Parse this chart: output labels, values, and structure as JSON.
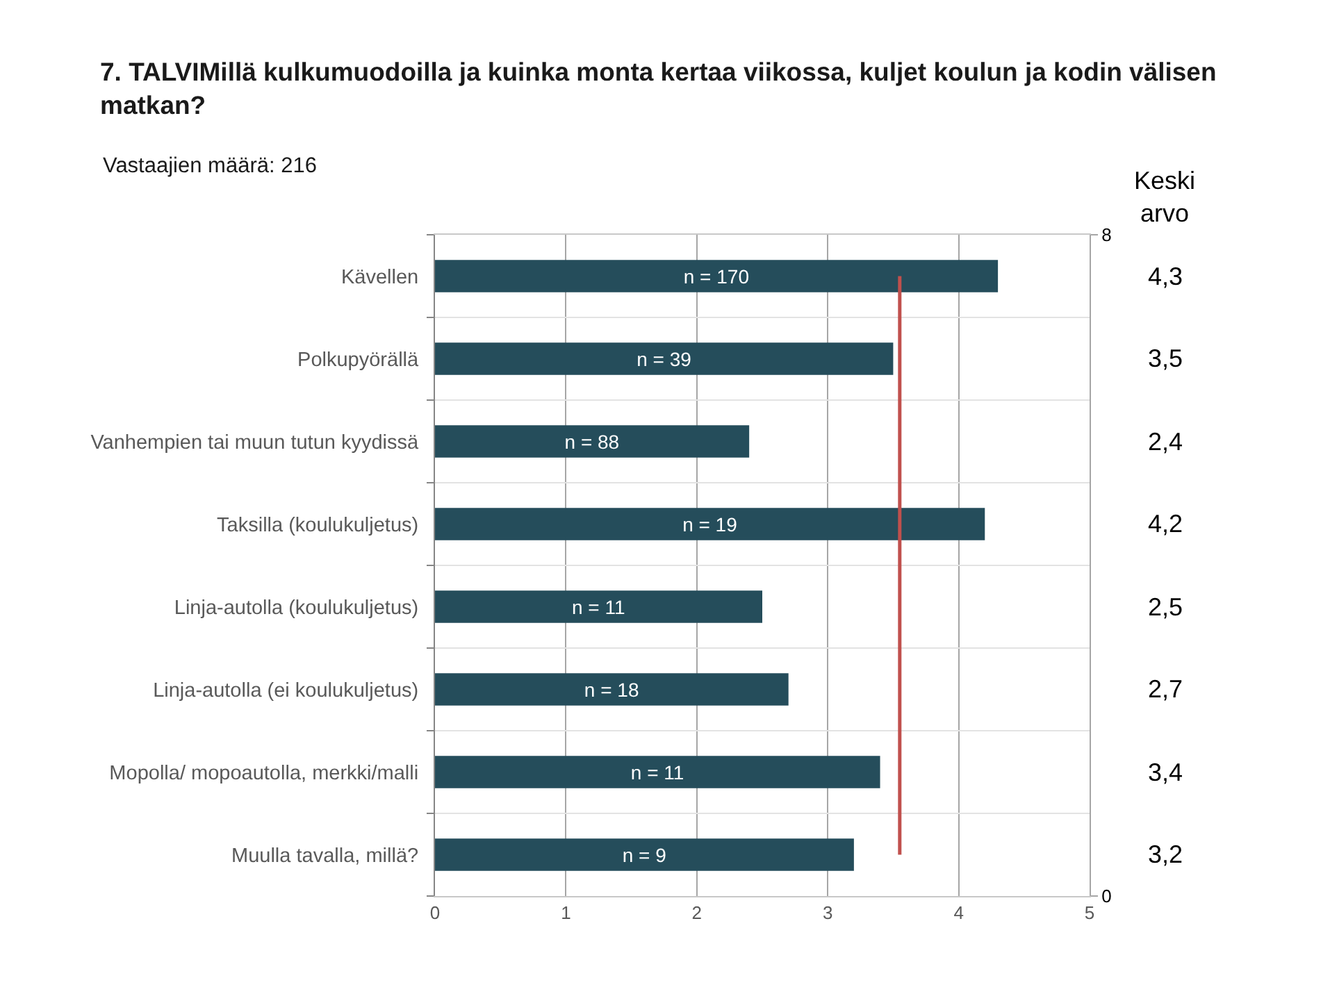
{
  "chart_data": {
    "type": "bar",
    "orientation": "horizontal",
    "title": "7. TALVIMillä kulkumuodoilla ja kuinka monta kertaa viikossa, kuljet koulun ja kodin välisen matkan?",
    "subtitle": "Vastaajien määrä: 216",
    "categories": [
      "Kävellen",
      "Polkupyörällä",
      "Vanhempien tai muun tutun kyydissä",
      "Taksilla (koulukuljetus)",
      "Linja-autolla (koulukuljetus)",
      "Linja-autolla (ei koulukuljetus)",
      "Mopolla/ mopoautolla, merkki/malli",
      "Muulla tavalla, millä?"
    ],
    "series": [
      {
        "color": "#254d5b",
        "values": [
          4.3,
          3.5,
          2.4,
          4.2,
          2.5,
          2.7,
          3.4,
          3.2
        ],
        "value_labels": [
          "4,3",
          "3,5",
          "2,4",
          "4,2",
          "2,5",
          "2,7",
          "3,4",
          "3,2"
        ]
      },
      {
        "type": "line",
        "color": "#c0504d",
        "values": [
          3.55,
          3.55,
          3.55,
          3.55,
          3.55,
          3.55,
          3.55,
          3.55
        ]
      }
    ],
    "xlim": [
      0,
      5
    ],
    "xticks": [
      0,
      1,
      2,
      3,
      4,
      5
    ],
    "y2lim": [
      0,
      8
    ],
    "y2ticks": [
      0,
      8
    ],
    "grid": true,
    "annotations": [
      "Keski\narvo",
      "n = 170",
      "n = 39",
      "n = 88",
      "n = 19",
      "n = 11",
      "n = 18",
      "n = 11",
      "n = 9"
    ]
  }
}
